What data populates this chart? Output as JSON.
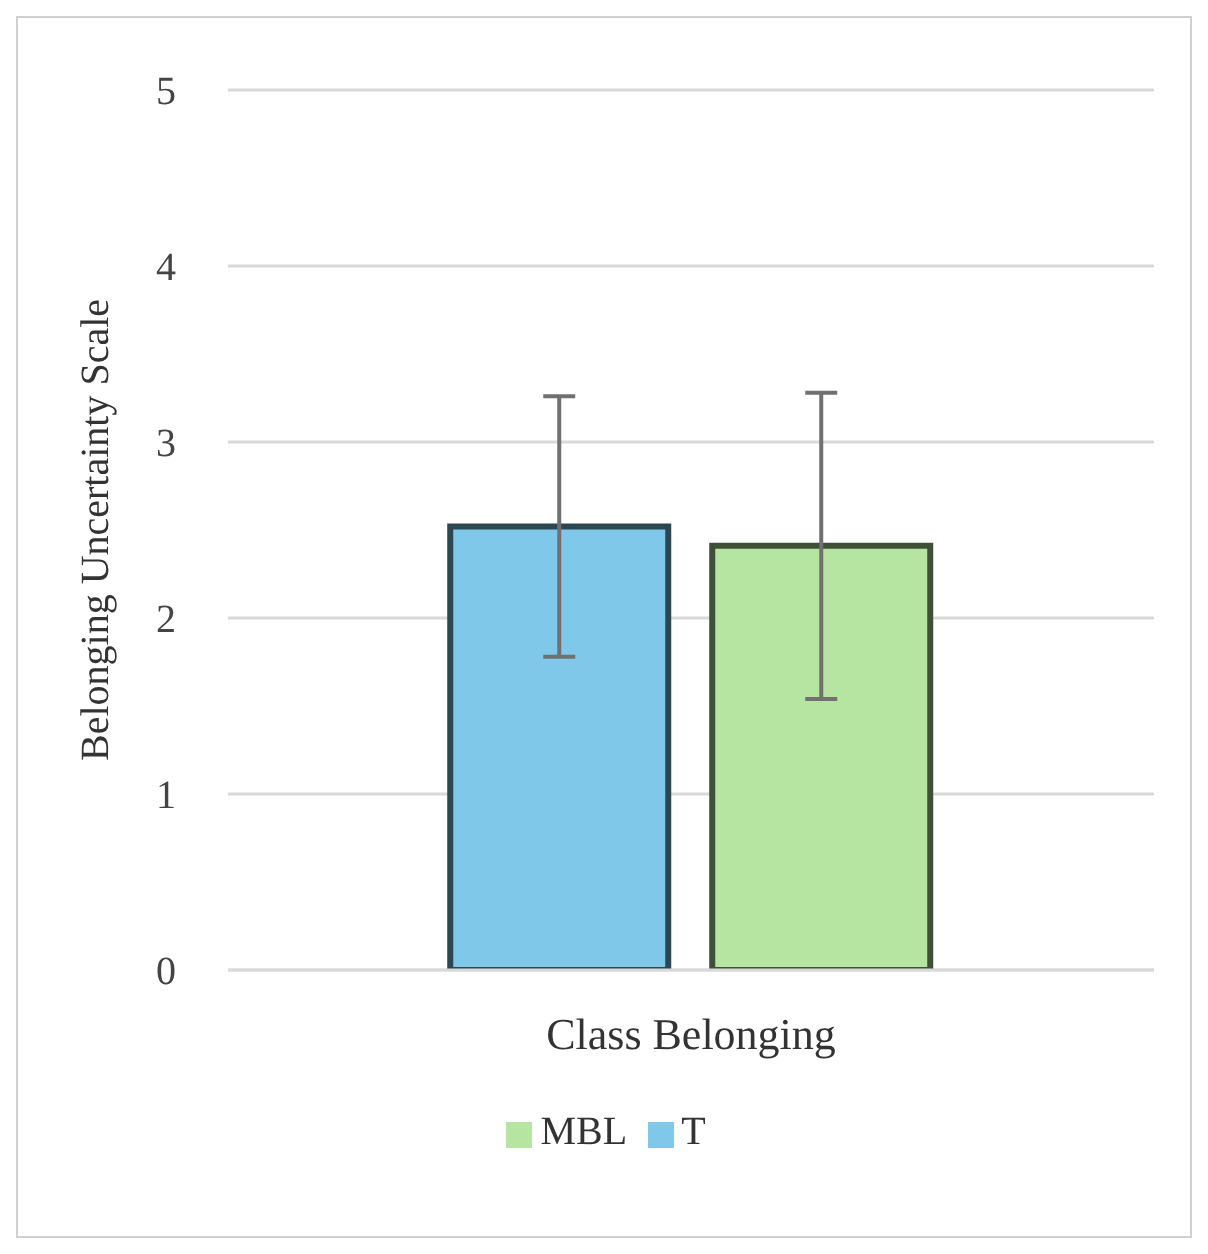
{
  "chart_data": {
    "type": "bar",
    "xlabel": "Class Belonging",
    "ylabel": "Belonging Uncertainty Scale",
    "categories": [
      null
    ],
    "series": [
      {
        "name": "T",
        "color": "#7fc8ea",
        "values": [
          2.52
        ],
        "errors": [
          0.74
        ]
      },
      {
        "name": "MBL",
        "color": "#b5e5a0",
        "values": [
          2.41
        ],
        "errors": [
          0.87
        ]
      }
    ],
    "ylim": [
      0,
      5
    ],
    "yticks": [
      0,
      1,
      2,
      3,
      4,
      5
    ],
    "grid": "y",
    "legend": "bottom"
  }
}
